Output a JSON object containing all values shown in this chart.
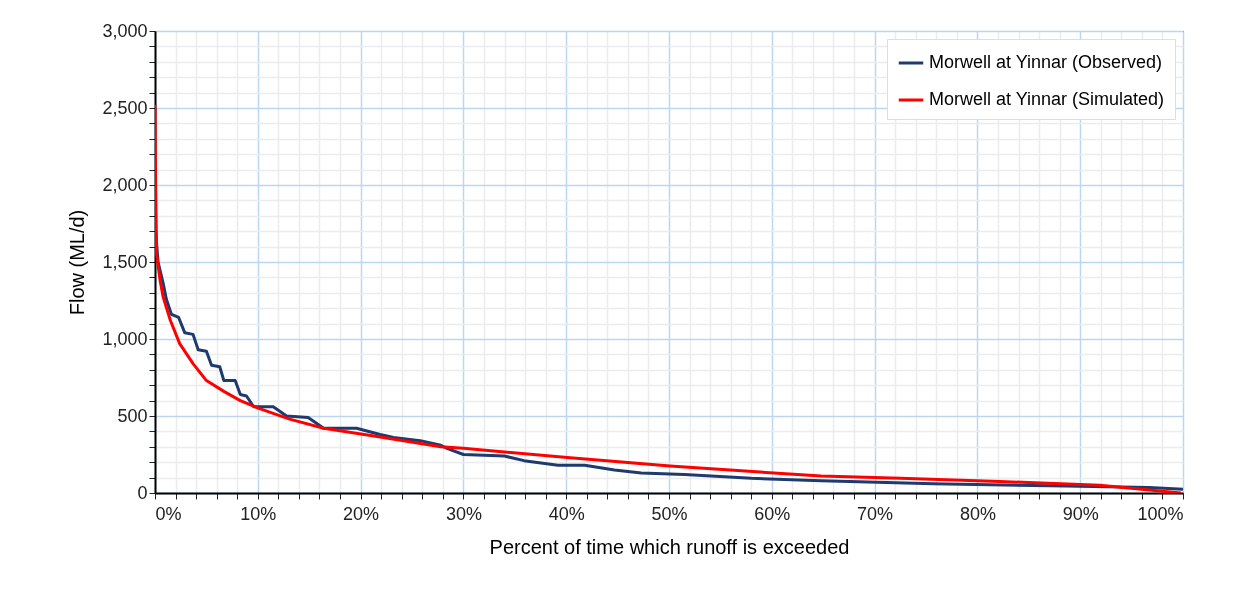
{
  "chart_data": {
    "type": "line",
    "xlabel": "Percent of time which runoff is exceeded",
    "ylabel": "Flow (ML/d)",
    "xlim": [
      0,
      100
    ],
    "ylim": [
      0,
      3000
    ],
    "xticks": [
      {
        "value": 0,
        "label": "0%"
      },
      {
        "value": 2,
        "label": null
      },
      {
        "value": 4,
        "label": null
      },
      {
        "value": 6,
        "label": null
      },
      {
        "value": 8,
        "label": null
      },
      {
        "value": 10,
        "label": "10%"
      },
      {
        "value": 12,
        "label": null
      },
      {
        "value": 14,
        "label": null
      },
      {
        "value": 16,
        "label": null
      },
      {
        "value": 18,
        "label": null
      },
      {
        "value": 20,
        "label": "20%"
      },
      {
        "value": 22,
        "label": null
      },
      {
        "value": 24,
        "label": null
      },
      {
        "value": 26,
        "label": null
      },
      {
        "value": 28,
        "label": null
      },
      {
        "value": 30,
        "label": "30%"
      },
      {
        "value": 32,
        "label": null
      },
      {
        "value": 34,
        "label": null
      },
      {
        "value": 36,
        "label": null
      },
      {
        "value": 38,
        "label": null
      },
      {
        "value": 40,
        "label": "40%"
      },
      {
        "value": 42,
        "label": null
      },
      {
        "value": 44,
        "label": null
      },
      {
        "value": 46,
        "label": null
      },
      {
        "value": 48,
        "label": null
      },
      {
        "value": 50,
        "label": "50%"
      },
      {
        "value": 52,
        "label": null
      },
      {
        "value": 54,
        "label": null
      },
      {
        "value": 56,
        "label": null
      },
      {
        "value": 58,
        "label": null
      },
      {
        "value": 60,
        "label": "60%"
      },
      {
        "value": 62,
        "label": null
      },
      {
        "value": 64,
        "label": null
      },
      {
        "value": 66,
        "label": null
      },
      {
        "value": 68,
        "label": null
      },
      {
        "value": 70,
        "label": "70%"
      },
      {
        "value": 72,
        "label": null
      },
      {
        "value": 74,
        "label": null
      },
      {
        "value": 76,
        "label": null
      },
      {
        "value": 78,
        "label": null
      },
      {
        "value": 80,
        "label": "80%"
      },
      {
        "value": 82,
        "label": null
      },
      {
        "value": 84,
        "label": null
      },
      {
        "value": 86,
        "label": null
      },
      {
        "value": 88,
        "label": null
      },
      {
        "value": 90,
        "label": "90%"
      },
      {
        "value": 92,
        "label": null
      },
      {
        "value": 94,
        "label": null
      },
      {
        "value": 96,
        "label": null
      },
      {
        "value": 98,
        "label": null
      },
      {
        "value": 100,
        "label": "100%"
      }
    ],
    "yticks": [
      {
        "value": 0,
        "label": "0"
      },
      {
        "value": 100,
        "label": null
      },
      {
        "value": 200,
        "label": null
      },
      {
        "value": 300,
        "label": null
      },
      {
        "value": 400,
        "label": null
      },
      {
        "value": 500,
        "label": "500"
      },
      {
        "value": 600,
        "label": null
      },
      {
        "value": 700,
        "label": null
      },
      {
        "value": 800,
        "label": null
      },
      {
        "value": 900,
        "label": null
      },
      {
        "value": 1000,
        "label": "1,000"
      },
      {
        "value": 1100,
        "label": null
      },
      {
        "value": 1200,
        "label": null
      },
      {
        "value": 1300,
        "label": null
      },
      {
        "value": 1400,
        "label": null
      },
      {
        "value": 1500,
        "label": "1,500"
      },
      {
        "value": 1600,
        "label": null
      },
      {
        "value": 1700,
        "label": null
      },
      {
        "value": 1800,
        "label": null
      },
      {
        "value": 1900,
        "label": null
      },
      {
        "value": 2000,
        "label": "2,000"
      },
      {
        "value": 2100,
        "label": null
      },
      {
        "value": 2200,
        "label": null
      },
      {
        "value": 2300,
        "label": null
      },
      {
        "value": 2400,
        "label": null
      },
      {
        "value": 2500,
        "label": "2,500"
      },
      {
        "value": 2600,
        "label": null
      },
      {
        "value": 2700,
        "label": null
      },
      {
        "value": 2800,
        "label": null
      },
      {
        "value": 2900,
        "label": null
      },
      {
        "value": 3000,
        "label": "3,000"
      }
    ],
    "grid": true,
    "legend": "top right",
    "marker": "none",
    "line_style": "solid",
    "series": [
      {
        "name": "Morwell at Yinnar (Observed)",
        "color": "#1f3a6e",
        "x": [
          0,
          0.3,
          0.8,
          1.1,
          1.6,
          2.3,
          2.9,
          3.7,
          4.2,
          5.0,
          5.5,
          6.3,
          6.7,
          7.8,
          8.3,
          8.9,
          9.6,
          11.5,
          12.8,
          14.9,
          16.4,
          19.6,
          21.9,
          23.2,
          25.8,
          27.8,
          28.4,
          30.0,
          34.0,
          35.9,
          39.2,
          41.8,
          44.7,
          47.3,
          51.5,
          54.1,
          58.0,
          64.8,
          75.7,
          88.6,
          96.7,
          100
        ],
        "values": [
          1750,
          1500,
          1360,
          1260,
          1160,
          1140,
          1040,
          1030,
          930,
          920,
          830,
          820,
          730,
          730,
          640,
          630,
          560,
          560,
          500,
          490,
          420,
          420,
          380,
          360,
          340,
          310,
          290,
          250,
          240,
          210,
          180,
          180,
          150,
          130,
          120,
          110,
          95,
          80,
          60,
          45,
          35,
          25
        ]
      },
      {
        "name": "Morwell at Yinnar (Simulated)",
        "color": "#ff0000",
        "x": [
          0,
          0.06,
          0.16,
          0.5,
          0.8,
          1.5,
          2.4,
          3.7,
          5.0,
          6.7,
          8.3,
          10.1,
          13.1,
          16.4,
          21.3,
          27.8,
          30.0,
          40.1,
          50.1,
          60.2,
          64.8,
          72.5,
          82.2,
          91.9,
          96.7,
          99.8
        ],
        "values": [
          2520,
          1990,
          1550,
          1380,
          1270,
          1120,
          970,
          840,
          730,
          660,
          600,
          550,
          480,
          420,
          370,
          300,
          290,
          230,
          175,
          130,
          110,
          95,
          75,
          50,
          20,
          0
        ]
      }
    ]
  }
}
